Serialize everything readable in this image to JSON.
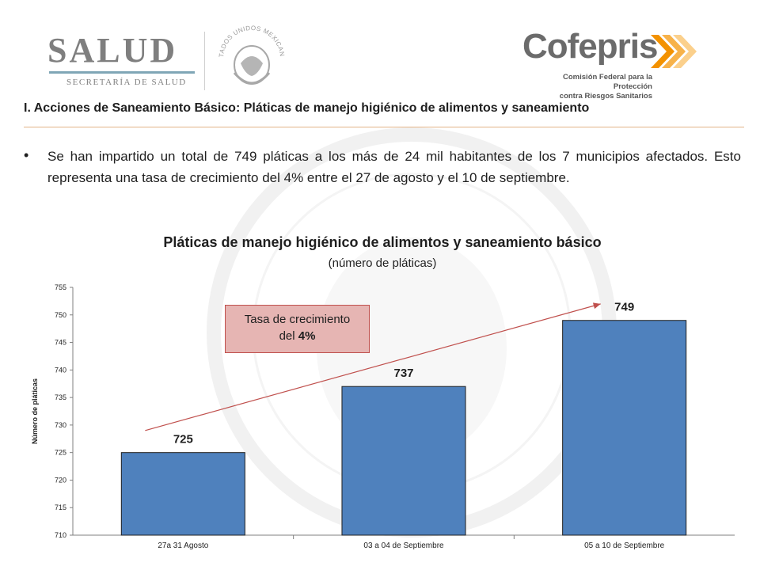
{
  "header": {
    "salud": {
      "name": "SALUD",
      "subtitle": "SECRETARÍA DE SALUD"
    },
    "seal": {
      "text": "ESTADOS UNIDOS MEXICANOS"
    },
    "cofepris": {
      "name": "Cofepris",
      "subtitle_line1": "Comisión Federal para la Protección",
      "subtitle_line2": "contra Riesgos Sanitarios"
    }
  },
  "section": {
    "title": "I. Acciones de Saneamiento Básico: Pláticas de manejo higiénico de alimentos y saneamiento",
    "bullet": "Se han impartido un total de 749 pláticas a los más de 24 mil habitantes de los 7 municipios afectados. Esto representa una tasa de crecimiento del 4% entre el 27 de agosto y el 10 de septiembre."
  },
  "callout": {
    "line1": "Tasa de crecimiento",
    "line2_prefix": "del ",
    "line2_value": "4%"
  },
  "colors": {
    "bar": "#4f81bd",
    "trend": "#c0504d",
    "callout_fill": "#e6b5b3",
    "rule": "#e3b386"
  },
  "chart_data": {
    "type": "bar",
    "title": "Pláticas de manejo higiénico de alimentos y saneamiento básico",
    "subtitle": "(número de pláticas)",
    "ylabel": "Número de pláticas",
    "xlabel": "",
    "categories": [
      "27a 31 Agosto",
      "03 a 04 de Septiembre",
      "05 a 10 de Septiembre"
    ],
    "values": [
      725,
      737,
      749
    ],
    "ylim": [
      710,
      755
    ],
    "yticks": [
      710,
      715,
      720,
      725,
      730,
      735,
      740,
      745,
      750,
      755
    ],
    "grid": false,
    "legend": "none",
    "trend_arrow": {
      "from": 729,
      "to": 752
    }
  }
}
